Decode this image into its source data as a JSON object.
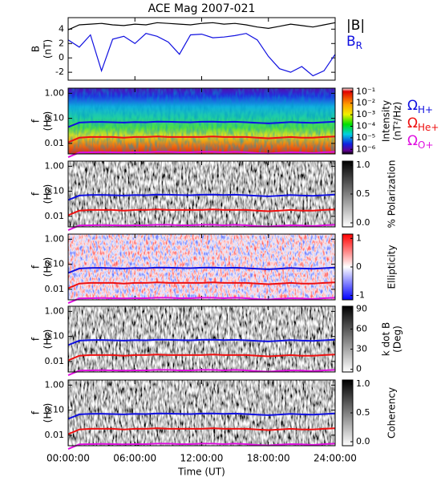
{
  "chart_data": [
    {
      "type": "line",
      "title": "ACE Mag 2007-021",
      "ylabel": [
        "B",
        "(nT)"
      ],
      "x": [
        0,
        1,
        2,
        3,
        4,
        5,
        6,
        7,
        8,
        9,
        10,
        11,
        12,
        13,
        14,
        15,
        16,
        17,
        18,
        19,
        20,
        21,
        22,
        23,
        24
      ],
      "xlim": [
        0,
        24
      ],
      "ylim": [
        -3.1,
        5.6
      ],
      "yticks": [
        -2,
        0,
        2,
        4
      ],
      "series": [
        {
          "name": "|B|",
          "color": "#000000",
          "values": [
            3.9,
            4.6,
            4.7,
            4.8,
            4.6,
            4.5,
            4.7,
            4.6,
            4.9,
            4.8,
            4.7,
            4.6,
            4.8,
            4.9,
            4.7,
            4.8,
            4.6,
            4.3,
            4.1,
            4.4,
            4.7,
            4.5,
            4.3,
            4.6,
            4.9
          ]
        },
        {
          "name": "B",
          "subscript": "R",
          "color": "#1010e0",
          "values": [
            2.5,
            1.5,
            3.2,
            -1.8,
            2.6,
            3.0,
            2.0,
            3.4,
            3.0,
            2.2,
            0.5,
            3.2,
            3.3,
            2.8,
            2.9,
            3.1,
            3.4,
            2.5,
            0.2,
            -1.5,
            -2.0,
            -1.2,
            -2.5,
            -1.8,
            0.5
          ]
        }
      ]
    },
    {
      "type": "spectrogram",
      "ylabel": [
        "f",
        "(Hz)"
      ],
      "yscale": "log",
      "colormap": "rainbow",
      "x": [
        0,
        1,
        2,
        3,
        4,
        5,
        6,
        7,
        8,
        9,
        10,
        11,
        12,
        13,
        14,
        15,
        16,
        17,
        18,
        19,
        20,
        21,
        22,
        23,
        24
      ],
      "xlim": [
        0,
        24
      ],
      "ylim": [
        0.0038,
        1.6
      ],
      "yticks": [
        {
          "value": 1,
          "label": "1.00"
        },
        {
          "value": 0.1,
          "label": "0.10"
        },
        {
          "value": 0.01,
          "label": "0.01"
        }
      ],
      "colorbar": {
        "label": [
          "Intensity",
          "(nT²/Hz)"
        ],
        "scale": "log",
        "lim": [
          4e-07,
          0.2
        ],
        "ticks": [
          {
            "value": 0.1,
            "label": "10⁻¹"
          },
          {
            "value": 0.01,
            "label": "10⁻²"
          },
          {
            "value": 0.001,
            "label": "10⁻³"
          },
          {
            "value": 0.0001,
            "label": "10⁻⁴"
          },
          {
            "value": 1e-05,
            "label": "10⁻⁵"
          },
          {
            "value": 1e-06,
            "label": "10⁻⁶"
          }
        ]
      },
      "series": [
        {
          "name": "Ω",
          "subscript": "H+",
          "color": "#1010e0",
          "values": [
            0.045,
            0.068,
            0.071,
            0.072,
            0.07,
            0.068,
            0.071,
            0.07,
            0.074,
            0.073,
            0.071,
            0.07,
            0.073,
            0.074,
            0.071,
            0.073,
            0.07,
            0.066,
            0.063,
            0.067,
            0.071,
            0.068,
            0.066,
            0.07,
            0.074
          ]
        },
        {
          "name": "Ω",
          "subscript": "He+",
          "color": "#ee1010",
          "values": [
            0.011,
            0.017,
            0.018,
            0.018,
            0.018,
            0.017,
            0.018,
            0.018,
            0.019,
            0.018,
            0.018,
            0.018,
            0.018,
            0.019,
            0.018,
            0.018,
            0.018,
            0.017,
            0.016,
            0.017,
            0.018,
            0.017,
            0.017,
            0.018,
            0.019
          ]
        },
        {
          "name": "Ω",
          "subscript": "O+",
          "color": "#e010e0",
          "values": [
            0.0028,
            0.0043,
            0.0044,
            0.0045,
            0.0044,
            0.0043,
            0.0044,
            0.0044,
            0.0046,
            0.0046,
            0.0044,
            0.0044,
            0.0046,
            0.0046,
            0.0044,
            0.0046,
            0.0044,
            0.0041,
            0.0039,
            0.0042,
            0.0044,
            0.0043,
            0.0041,
            0.0044,
            0.0046
          ]
        }
      ]
    },
    {
      "type": "spectrogram",
      "ylabel": [
        "f",
        "(Hz)"
      ],
      "yscale": "log",
      "colormap": "gray",
      "x": [
        0,
        1,
        2,
        3,
        4,
        5,
        6,
        7,
        8,
        9,
        10,
        11,
        12,
        13,
        14,
        15,
        16,
        17,
        18,
        19,
        20,
        21,
        22,
        23,
        24
      ],
      "xlim": [
        0,
        24
      ],
      "ylim": [
        0.0038,
        1.6
      ],
      "yticks": [
        {
          "value": 1,
          "label": "1.00"
        },
        {
          "value": 0.1,
          "label": "0.10"
        },
        {
          "value": 0.01,
          "label": "0.01"
        }
      ],
      "colorbar": {
        "label": [
          "% Polarization"
        ],
        "scale": "linear",
        "lim": [
          -0.07,
          1.07
        ],
        "ticks": [
          {
            "value": 1,
            "label": "1.0"
          },
          {
            "value": 0.5,
            "label": "0.5"
          },
          {
            "value": 0,
            "label": "0.0"
          }
        ]
      },
      "series": [
        {
          "color": "#1010e0",
          "values": [
            0.045,
            0.068,
            0.071,
            0.072,
            0.07,
            0.068,
            0.071,
            0.07,
            0.074,
            0.073,
            0.071,
            0.07,
            0.073,
            0.074,
            0.071,
            0.073,
            0.07,
            0.066,
            0.063,
            0.067,
            0.071,
            0.068,
            0.066,
            0.07,
            0.074
          ]
        },
        {
          "color": "#ee1010",
          "values": [
            0.011,
            0.017,
            0.018,
            0.018,
            0.018,
            0.017,
            0.018,
            0.018,
            0.019,
            0.018,
            0.018,
            0.018,
            0.018,
            0.019,
            0.018,
            0.018,
            0.018,
            0.017,
            0.016,
            0.017,
            0.018,
            0.017,
            0.017,
            0.018,
            0.019
          ]
        },
        {
          "color": "#e010e0",
          "values": [
            0.0028,
            0.0043,
            0.0044,
            0.0045,
            0.0044,
            0.0043,
            0.0044,
            0.0044,
            0.0046,
            0.0046,
            0.0044,
            0.0044,
            0.0046,
            0.0046,
            0.0044,
            0.0046,
            0.0044,
            0.0041,
            0.0039,
            0.0042,
            0.0044,
            0.0043,
            0.0041,
            0.0044,
            0.0046
          ]
        }
      ]
    },
    {
      "type": "spectrogram",
      "ylabel": [
        "f",
        "(Hz)"
      ],
      "yscale": "log",
      "colormap": "bwr",
      "x": [
        0,
        1,
        2,
        3,
        4,
        5,
        6,
        7,
        8,
        9,
        10,
        11,
        12,
        13,
        14,
        15,
        16,
        17,
        18,
        19,
        20,
        21,
        22,
        23,
        24
      ],
      "xlim": [
        0,
        24
      ],
      "ylim": [
        0.0038,
        1.6
      ],
      "yticks": [
        {
          "value": 1,
          "label": "1.00"
        },
        {
          "value": 0.1,
          "label": "0.10"
        },
        {
          "value": 0.01,
          "label": "0.01"
        }
      ],
      "colorbar": {
        "label": [
          "Ellipticity"
        ],
        "scale": "linear",
        "lim": [
          -1.15,
          1.15
        ],
        "ticks": [
          1,
          0,
          -1
        ]
      },
      "series": [
        {
          "color": "#1010e0",
          "values": [
            0.045,
            0.068,
            0.071,
            0.072,
            0.07,
            0.068,
            0.071,
            0.07,
            0.074,
            0.073,
            0.071,
            0.07,
            0.073,
            0.074,
            0.071,
            0.073,
            0.07,
            0.066,
            0.063,
            0.067,
            0.071,
            0.068,
            0.066,
            0.07,
            0.074
          ]
        },
        {
          "color": "#ee1010",
          "values": [
            0.011,
            0.017,
            0.018,
            0.018,
            0.018,
            0.017,
            0.018,
            0.018,
            0.019,
            0.018,
            0.018,
            0.018,
            0.018,
            0.019,
            0.018,
            0.018,
            0.018,
            0.017,
            0.016,
            0.017,
            0.018,
            0.017,
            0.017,
            0.018,
            0.019
          ]
        },
        {
          "color": "#e010e0",
          "values": [
            0.0028,
            0.0043,
            0.0044,
            0.0045,
            0.0044,
            0.0043,
            0.0044,
            0.0044,
            0.0046,
            0.0046,
            0.0044,
            0.0044,
            0.0046,
            0.0046,
            0.0044,
            0.0046,
            0.0044,
            0.0041,
            0.0039,
            0.0042,
            0.0044,
            0.0043,
            0.0041,
            0.0044,
            0.0046
          ]
        }
      ]
    },
    {
      "type": "spectrogram",
      "ylabel": [
        "f",
        "(Hz)"
      ],
      "yscale": "log",
      "colormap": "gray",
      "x": [
        0,
        1,
        2,
        3,
        4,
        5,
        6,
        7,
        8,
        9,
        10,
        11,
        12,
        13,
        14,
        15,
        16,
        17,
        18,
        19,
        20,
        21,
        22,
        23,
        24
      ],
      "xlim": [
        0,
        24
      ],
      "ylim": [
        0.0038,
        1.6
      ],
      "yticks": [
        {
          "value": 1,
          "label": "1.00"
        },
        {
          "value": 0.1,
          "label": "0.10"
        },
        {
          "value": 0.01,
          "label": "0.01"
        }
      ],
      "colorbar": {
        "label": [
          "k dot B",
          "(Deg)"
        ],
        "scale": "linear",
        "lim": [
          -4,
          94
        ],
        "ticks": [
          90,
          60,
          30,
          0
        ]
      },
      "series": [
        {
          "color": "#1010e0",
          "values": [
            0.045,
            0.068,
            0.071,
            0.072,
            0.07,
            0.068,
            0.071,
            0.07,
            0.074,
            0.073,
            0.071,
            0.07,
            0.073,
            0.074,
            0.071,
            0.073,
            0.07,
            0.066,
            0.063,
            0.067,
            0.071,
            0.068,
            0.066,
            0.07,
            0.074
          ]
        },
        {
          "color": "#ee1010",
          "values": [
            0.011,
            0.017,
            0.018,
            0.018,
            0.018,
            0.017,
            0.018,
            0.018,
            0.019,
            0.018,
            0.018,
            0.018,
            0.018,
            0.019,
            0.018,
            0.018,
            0.018,
            0.017,
            0.016,
            0.017,
            0.018,
            0.017,
            0.017,
            0.018,
            0.019
          ]
        },
        {
          "color": "#e010e0",
          "values": [
            0.0028,
            0.0043,
            0.0044,
            0.0045,
            0.0044,
            0.0043,
            0.0044,
            0.0044,
            0.0046,
            0.0046,
            0.0044,
            0.0044,
            0.0046,
            0.0046,
            0.0044,
            0.0046,
            0.0044,
            0.0041,
            0.0039,
            0.0042,
            0.0044,
            0.0043,
            0.0041,
            0.0044,
            0.0046
          ]
        }
      ]
    },
    {
      "type": "spectrogram",
      "ylabel": [
        "f",
        "(Hz)"
      ],
      "yscale": "log",
      "colormap": "gray",
      "x": [
        0,
        1,
        2,
        3,
        4,
        5,
        6,
        7,
        8,
        9,
        10,
        11,
        12,
        13,
        14,
        15,
        16,
        17,
        18,
        19,
        20,
        21,
        22,
        23,
        24
      ],
      "xlim": [
        0,
        24
      ],
      "xticks": [
        {
          "value": 0,
          "label": "00:00:00"
        },
        {
          "value": 6,
          "label": "06:00:00"
        },
        {
          "value": 12,
          "label": "12:00:00"
        },
        {
          "value": 18,
          "label": "18:00:00"
        },
        {
          "value": 24,
          "label": "24:00:00"
        }
      ],
      "xlabel": "Time (UT)",
      "ylim": [
        0.0038,
        1.6
      ],
      "yticks": [
        {
          "value": 1,
          "label": "1.00"
        },
        {
          "value": 0.1,
          "label": "0.10"
        },
        {
          "value": 0.01,
          "label": "0.01"
        }
      ],
      "colorbar": {
        "label": [
          "Coherency"
        ],
        "scale": "linear",
        "lim": [
          -0.07,
          1.07
        ],
        "ticks": [
          {
            "value": 1,
            "label": "1.0"
          },
          {
            "value": 0.5,
            "label": "0.5"
          },
          {
            "value": 0,
            "label": "0.0"
          }
        ]
      },
      "series": [
        {
          "color": "#1010e0",
          "values": [
            0.045,
            0.068,
            0.071,
            0.072,
            0.07,
            0.068,
            0.071,
            0.07,
            0.074,
            0.073,
            0.071,
            0.07,
            0.073,
            0.074,
            0.071,
            0.073,
            0.07,
            0.066,
            0.063,
            0.067,
            0.071,
            0.068,
            0.066,
            0.07,
            0.074
          ]
        },
        {
          "color": "#ee1010",
          "values": [
            0.011,
            0.017,
            0.018,
            0.018,
            0.018,
            0.017,
            0.018,
            0.018,
            0.019,
            0.018,
            0.018,
            0.018,
            0.018,
            0.019,
            0.018,
            0.018,
            0.018,
            0.017,
            0.016,
            0.017,
            0.018,
            0.017,
            0.017,
            0.018,
            0.019
          ]
        },
        {
          "color": "#e010e0",
          "values": [
            0.0028,
            0.0043,
            0.0044,
            0.0045,
            0.0044,
            0.0043,
            0.0044,
            0.0044,
            0.0046,
            0.0046,
            0.0044,
            0.0044,
            0.0046,
            0.0046,
            0.0044,
            0.0046,
            0.0044,
            0.0041,
            0.0039,
            0.0042,
            0.0044,
            0.0043,
            0.0041,
            0.0044,
            0.0046
          ]
        }
      ]
    }
  ]
}
